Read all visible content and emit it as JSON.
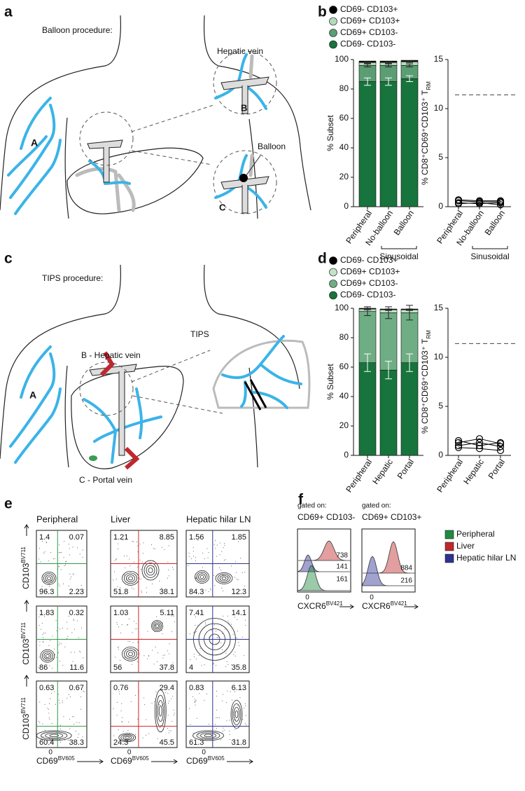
{
  "panel_labels": {
    "a": "a",
    "b": "b",
    "c": "c",
    "d": "d",
    "e": "e",
    "f": "f"
  },
  "diagram_a": {
    "title": "Balloon procedure:",
    "arm": "A",
    "site_b": "B",
    "site_c": "C",
    "vein": "Hepatic vein",
    "balloon": "Balloon"
  },
  "diagram_c": {
    "title": "TIPS procedure:",
    "arm": "A",
    "hepatic": "B - Hepatic vein",
    "portal": "C - Portal vein",
    "tips": "TIPS"
  },
  "chart_data": [
    {
      "type": "bar",
      "stacked": true,
      "ylabel": "% Subset",
      "categories": [
        "Peripheral",
        "No-balloon",
        "Balloon"
      ],
      "group_label": "Sinusoidal",
      "group_span": [
        1,
        2
      ],
      "ylim": [
        0,
        100
      ],
      "yticks": [
        0,
        20,
        40,
        60,
        80,
        100
      ],
      "series": [
        {
          "name": "CD69- CD103-",
          "color": "#17743c",
          "values": [
            85,
            85,
            87
          ],
          "errors": [
            2.5,
            2.5,
            2
          ]
        },
        {
          "name": "CD69+ CD103-",
          "color": "#5b9e74",
          "values": [
            11,
            11,
            9
          ],
          "errors": [
            1,
            1,
            1
          ]
        },
        {
          "name": "CD69+ CD103+",
          "color": "#b2dbb9",
          "values": [
            2,
            2,
            2.5
          ],
          "errors": [
            0.5,
            0.5,
            0.5
          ]
        },
        {
          "name": "CD69- CD103+",
          "color": "#000000",
          "values": [
            1,
            1,
            1
          ]
        }
      ]
    },
    {
      "type": "line",
      "ylabel": "% CD8⁺CD69⁺CD103⁺ T",
      "ylabel_subscript": "RM",
      "categories": [
        "Peripheral",
        "No-balloon",
        "Balloon"
      ],
      "group_label": "Sinusoidal",
      "group_span": [
        1,
        2
      ],
      "ylim": [
        0,
        15
      ],
      "yticks": [
        0,
        5,
        10,
        15
      ],
      "reference_line": 11.4,
      "series": [
        {
          "color": "#000000",
          "values": [
            0.6,
            0.5,
            0.5
          ]
        },
        {
          "color": "#000000",
          "values": [
            0.4,
            0.3,
            0.4
          ]
        },
        {
          "color": "#000000",
          "values": [
            0.7,
            0.6,
            0.6
          ]
        },
        {
          "color": "#000000",
          "values": [
            0.3,
            0.4,
            0.2
          ]
        }
      ]
    },
    {
      "type": "bar",
      "stacked": true,
      "ylabel": "% Subset",
      "categories": [
        "Peripheral",
        "Hepatic",
        "Portal"
      ],
      "ylim": [
        0,
        100
      ],
      "yticks": [
        0,
        20,
        40,
        60,
        80,
        100
      ],
      "series": [
        {
          "name": "CD69- CD103-",
          "color": "#17743c",
          "values": [
            63,
            58,
            63
          ],
          "errors": [
            6,
            6,
            6
          ]
        },
        {
          "name": "CD69+ CD103-",
          "color": "#6fae84",
          "values": [
            35,
            39,
            34
          ],
          "errors": [
            3,
            4,
            5
          ]
        },
        {
          "name": "CD69+ CD103+",
          "color": "#c3e3c8",
          "values": [
            1.5,
            2,
            2
          ],
          "errors": [
            0.5,
            0.5,
            0.5
          ]
        },
        {
          "name": "CD69- CD103+",
          "color": "#000000",
          "values": [
            0.5,
            0.5,
            0.5
          ]
        }
      ]
    },
    {
      "type": "line",
      "ylabel": "% CD8⁺CD69⁺CD103⁺ T",
      "ylabel_subscript": "RM",
      "categories": [
        "Peripheral",
        "Hepatic",
        "Portal"
      ],
      "ylim": [
        0,
        15
      ],
      "yticks": [
        0,
        5,
        10,
        15
      ],
      "reference_line": 11.4,
      "series": [
        {
          "color": "#000000",
          "values": [
            1.3,
            1.7,
            1.2
          ]
        },
        {
          "color": "#000000",
          "values": [
            1.0,
            1.3,
            0.9
          ]
        },
        {
          "color": "#000000",
          "values": [
            1.5,
            1.0,
            1.3
          ]
        },
        {
          "color": "#000000",
          "values": [
            0.8,
            0.7,
            0.5
          ]
        }
      ]
    }
  ],
  "flow": {
    "columns": [
      {
        "label": "Peripheral",
        "color": "#2e9a47"
      },
      {
        "label": "Liver",
        "color": "#d2232a"
      },
      {
        "label": "Hepatic hilar LN",
        "color": "#2e3192"
      }
    ],
    "y_axis": {
      "label": "CD103",
      "marker": "BV711"
    },
    "x_axis": {
      "label": "CD69",
      "marker": "BV605"
    },
    "zero": "0",
    "rows": [
      [
        [
          1.4,
          0.07,
          96.3,
          2.23
        ],
        [
          1.21,
          8.85,
          51.8,
          38.1
        ],
        [
          1.56,
          1.85,
          84.3,
          12.3
        ]
      ],
      [
        [
          1.83,
          0.32,
          86,
          11.6
        ],
        [
          1.03,
          5.11,
          56,
          37.8
        ],
        [
          7.41,
          14.1,
          4,
          35.8
        ]
      ],
      [
        [
          0.63,
          0.67,
          60.4,
          38.3
        ],
        [
          0.76,
          29.4,
          24.3,
          45.5
        ],
        [
          0.83,
          6.13,
          61.3,
          31.8
        ]
      ]
    ]
  },
  "histograms": {
    "gate_prefix": "gated on:",
    "panels": [
      {
        "gate": "CD69+ CD103-",
        "values": [
          738,
          141,
          161
        ]
      },
      {
        "gate": "CD69+ CD103+",
        "values": [
          884,
          216
        ]
      }
    ],
    "legend": [
      {
        "label": "Peripheral",
        "color": "#1f8a3e"
      },
      {
        "label": "Liver",
        "color": "#c0272d"
      },
      {
        "label": "Hepatic hilar LN",
        "color": "#2e3192"
      }
    ],
    "x_axis": {
      "label": "CXCR6",
      "marker": "BV421"
    },
    "zero": "0"
  }
}
